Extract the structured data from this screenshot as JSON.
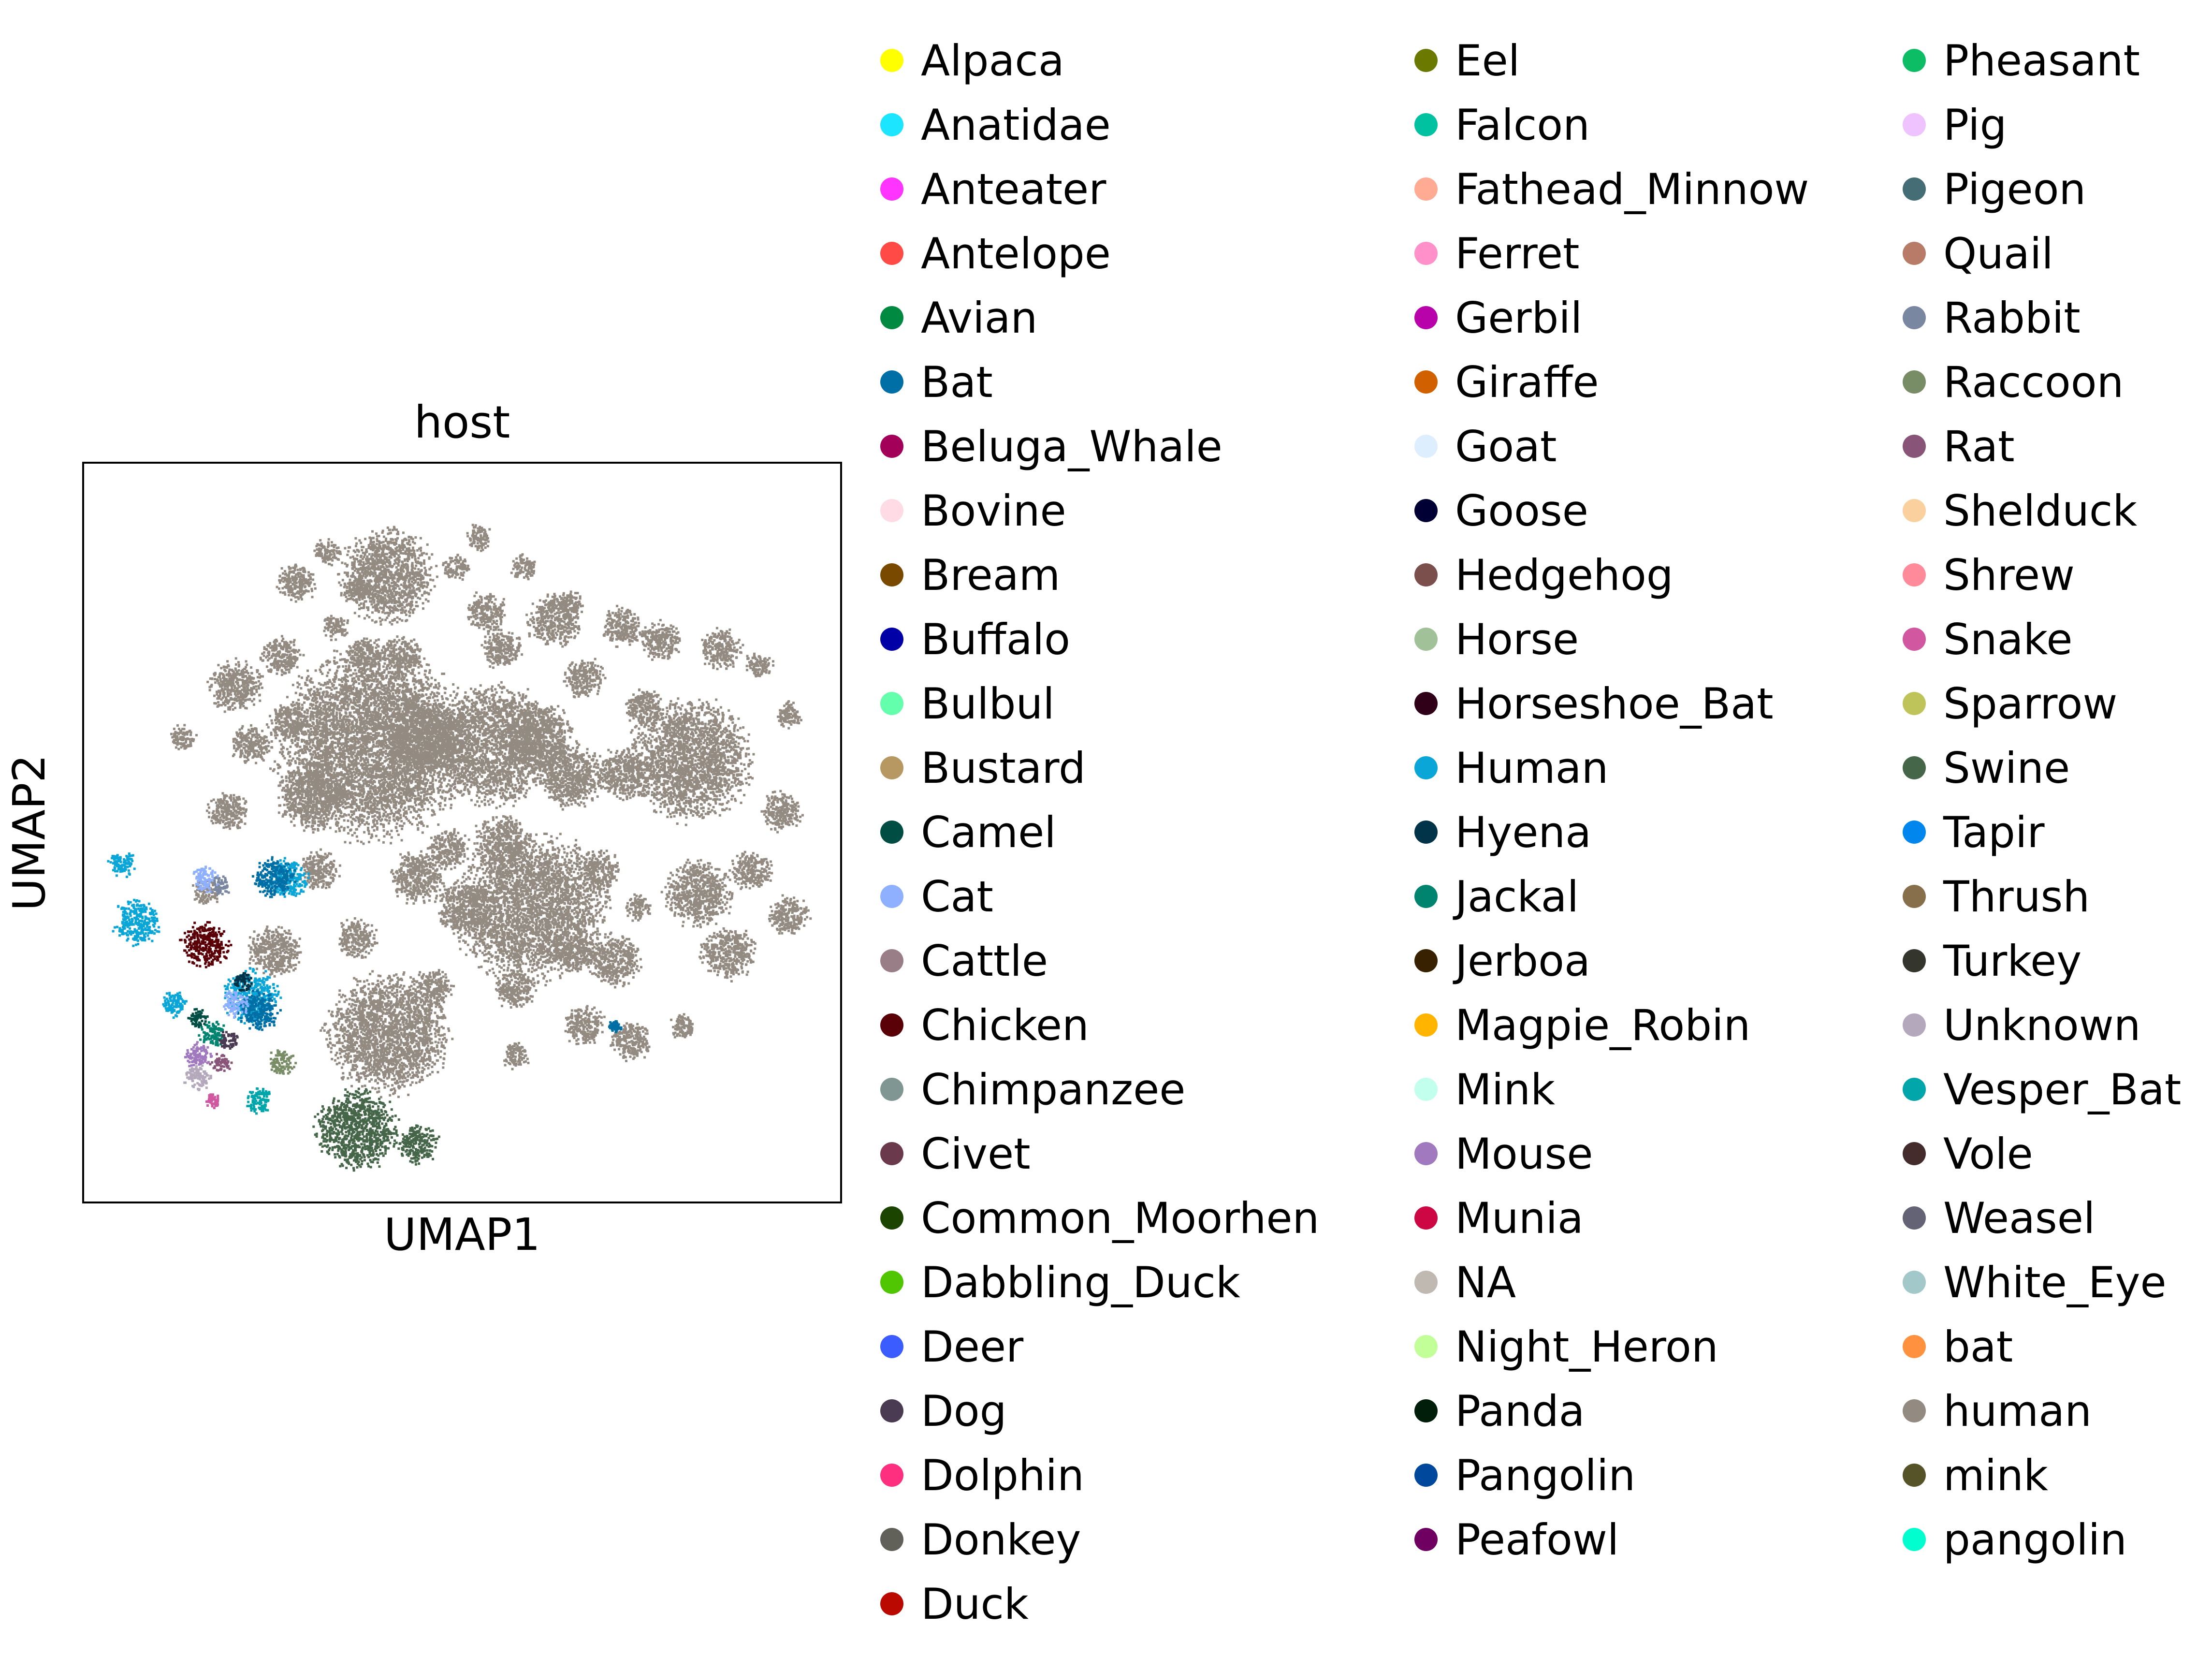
{
  "chart_data": {
    "type": "scatter",
    "title": "host",
    "xlabel": "UMAP1",
    "ylabel": "UMAP2",
    "x_ticks": "none",
    "y_ticks": "none",
    "grid": false,
    "legend_placement": "right, outside plot, 3 columns",
    "legend": [
      {
        "label": "Alpaca",
        "color": "#ffff00"
      },
      {
        "label": "Anatidae",
        "color": "#1ce6ff"
      },
      {
        "label": "Anteater",
        "color": "#ff34ff"
      },
      {
        "label": "Antelope",
        "color": "#ff4a46"
      },
      {
        "label": "Avian",
        "color": "#008941"
      },
      {
        "label": "Bat",
        "color": "#006fa6"
      },
      {
        "label": "Beluga_Whale",
        "color": "#a30059"
      },
      {
        "label": "Bovine",
        "color": "#ffdbe5"
      },
      {
        "label": "Bream",
        "color": "#7a4900"
      },
      {
        "label": "Buffalo",
        "color": "#0000a6"
      },
      {
        "label": "Bulbul",
        "color": "#63ffac"
      },
      {
        "label": "Bustard",
        "color": "#b79762"
      },
      {
        "label": "Camel",
        "color": "#004d43"
      },
      {
        "label": "Cat",
        "color": "#8fb0ff"
      },
      {
        "label": "Cattle",
        "color": "#997d87"
      },
      {
        "label": "Chicken",
        "color": "#5a0007"
      },
      {
        "label": "Chimpanzee",
        "color": "#809693"
      },
      {
        "label": "Civet",
        "color": "#6a3a4c"
      },
      {
        "label": "Common_Moorhen",
        "color": "#1b4400"
      },
      {
        "label": "Dabbling_Duck",
        "color": "#4fc601"
      },
      {
        "label": "Deer",
        "color": "#3b5dff"
      },
      {
        "label": "Dog",
        "color": "#4a3b53"
      },
      {
        "label": "Dolphin",
        "color": "#ff2f80"
      },
      {
        "label": "Donkey",
        "color": "#61615a"
      },
      {
        "label": "Duck",
        "color": "#ba0900"
      },
      {
        "label": "Eel",
        "color": "#6b7900"
      },
      {
        "label": "Falcon",
        "color": "#00c2a0"
      },
      {
        "label": "Fathead_Minnow",
        "color": "#ffaa92"
      },
      {
        "label": "Ferret",
        "color": "#ff90c9"
      },
      {
        "label": "Gerbil",
        "color": "#b903aa"
      },
      {
        "label": "Giraffe",
        "color": "#d16100"
      },
      {
        "label": "Goat",
        "color": "#ddefff"
      },
      {
        "label": "Goose",
        "color": "#000035"
      },
      {
        "label": "Hedgehog",
        "color": "#7b4f4b"
      },
      {
        "label": "Horse",
        "color": "#a1c299"
      },
      {
        "label": "Horseshoe_Bat",
        "color": "#300018"
      },
      {
        "label": "Human",
        "color": "#0aa6d8"
      },
      {
        "label": "Hyena",
        "color": "#013349"
      },
      {
        "label": "Jackal",
        "color": "#00846f"
      },
      {
        "label": "Jerboa",
        "color": "#372101"
      },
      {
        "label": "Magpie_Robin",
        "color": "#ffb500"
      },
      {
        "label": "Mink",
        "color": "#c2ffed"
      },
      {
        "label": "Mouse",
        "color": "#a079bf"
      },
      {
        "label": "Munia",
        "color": "#cc0744"
      },
      {
        "label": "NA",
        "color": "#c0b9b2"
      },
      {
        "label": "Night_Heron",
        "color": "#c2ff99"
      },
      {
        "label": "Panda",
        "color": "#001e09"
      },
      {
        "label": "Pangolin",
        "color": "#00489c"
      },
      {
        "label": "Peafowl",
        "color": "#6f0062"
      },
      {
        "label": "Pheasant",
        "color": "#0cbd66"
      },
      {
        "label": "Pig",
        "color": "#eec3ff"
      },
      {
        "label": "Pigeon",
        "color": "#456d75"
      },
      {
        "label": "Quail",
        "color": "#b77b68"
      },
      {
        "label": "Rabbit",
        "color": "#7a87a1"
      },
      {
        "label": "Raccoon",
        "color": "#788d66"
      },
      {
        "label": "Rat",
        "color": "#885578"
      },
      {
        "label": "Shelduck",
        "color": "#fad09f"
      },
      {
        "label": "Shrew",
        "color": "#ff8a9a"
      },
      {
        "label": "Snake",
        "color": "#d157a0"
      },
      {
        "label": "Sparrow",
        "color": "#bec459"
      },
      {
        "label": "Swine",
        "color": "#456648"
      },
      {
        "label": "Tapir",
        "color": "#0086ed"
      },
      {
        "label": "Thrush",
        "color": "#886f4c"
      },
      {
        "label": "Turkey",
        "color": "#34362d"
      },
      {
        "label": "Unknown",
        "color": "#b4a8bd"
      },
      {
        "label": "Vesper_Bat",
        "color": "#00a6aa"
      },
      {
        "label": "Vole",
        "color": "#452c2c"
      },
      {
        "label": "Weasel",
        "color": "#636375"
      },
      {
        "label": "White_Eye",
        "color": "#a3c8c9"
      },
      {
        "label": "bat",
        "color": "#ff913f"
      },
      {
        "label": "human",
        "color": "#938a81"
      },
      {
        "label": "mink",
        "color": "#575329"
      },
      {
        "label": "pangolin",
        "color": "#00fecf"
      }
    ],
    "clusters": [
      {
        "label": "human",
        "cx": 0.4,
        "cy": 0.85,
        "r": 0.07
      },
      {
        "label": "human",
        "cx": 0.38,
        "cy": 0.62,
        "r": 0.14
      },
      {
        "label": "human",
        "cx": 0.54,
        "cy": 0.62,
        "r": 0.09
      },
      {
        "label": "human",
        "cx": 0.59,
        "cy": 0.4,
        "r": 0.11
      },
      {
        "label": "human",
        "cx": 0.8,
        "cy": 0.6,
        "r": 0.09
      },
      {
        "label": "human",
        "cx": 0.4,
        "cy": 0.23,
        "r": 0.09
      },
      {
        "label": "human",
        "cx": 0.64,
        "cy": 0.58,
        "r": 0.05
      },
      {
        "label": "human",
        "cx": 0.28,
        "cy": 0.84,
        "r": 0.03
      },
      {
        "label": "human",
        "cx": 0.71,
        "cy": 0.58,
        "r": 0.04
      },
      {
        "label": "human",
        "cx": 0.55,
        "cy": 0.49,
        "r": 0.04
      },
      {
        "label": "human",
        "cx": 0.62,
        "cy": 0.79,
        "r": 0.04
      },
      {
        "label": "human",
        "cx": 0.7,
        "cy": 0.33,
        "r": 0.04
      },
      {
        "label": "human",
        "cx": 0.25,
        "cy": 0.34,
        "r": 0.04
      },
      {
        "label": "human",
        "cx": 0.72,
        "cy": 0.22,
        "r": 0.03
      },
      {
        "label": "human",
        "cx": 0.81,
        "cy": 0.42,
        "r": 0.05
      },
      {
        "label": "human",
        "cx": 0.64,
        "cy": 0.81,
        "r": 0.02
      },
      {
        "label": "human",
        "cx": 0.2,
        "cy": 0.7,
        "r": 0.04
      },
      {
        "label": "human",
        "cx": 0.76,
        "cy": 0.76,
        "r": 0.03
      },
      {
        "label": "human",
        "cx": 0.92,
        "cy": 0.53,
        "r": 0.03
      },
      {
        "label": "human",
        "cx": 0.65,
        "cy": 0.34,
        "r": 0.03
      },
      {
        "label": "human",
        "cx": 0.48,
        "cy": 0.48,
        "r": 0.03
      },
      {
        "label": "human",
        "cx": 0.88,
        "cy": 0.45,
        "r": 0.03
      },
      {
        "label": "human",
        "cx": 0.31,
        "cy": 0.45,
        "r": 0.03
      },
      {
        "label": "human",
        "cx": 0.36,
        "cy": 0.36,
        "r": 0.03
      },
      {
        "label": "human",
        "cx": 0.55,
        "cy": 0.75,
        "r": 0.03
      },
      {
        "label": "human",
        "cx": 0.33,
        "cy": 0.78,
        "r": 0.02
      },
      {
        "label": "human",
        "cx": 0.52,
        "cy": 0.9,
        "r": 0.02
      },
      {
        "label": "human",
        "cx": 0.71,
        "cy": 0.78,
        "r": 0.03
      },
      {
        "label": "human",
        "cx": 0.6,
        "cy": 0.63,
        "r": 0.05
      },
      {
        "label": "human",
        "cx": 0.45,
        "cy": 0.63,
        "r": 0.06
      },
      {
        "label": "human",
        "cx": 0.5,
        "cy": 0.4,
        "r": 0.04
      },
      {
        "label": "human",
        "cx": 0.44,
        "cy": 0.44,
        "r": 0.04
      },
      {
        "label": "human",
        "cx": 0.3,
        "cy": 0.55,
        "r": 0.05
      },
      {
        "label": "human",
        "cx": 0.19,
        "cy": 0.53,
        "r": 0.03
      },
      {
        "label": "human",
        "cx": 0.85,
        "cy": 0.34,
        "r": 0.04
      },
      {
        "label": "human",
        "cx": 0.93,
        "cy": 0.39,
        "r": 0.03
      },
      {
        "label": "human",
        "cx": 0.46,
        "cy": 0.29,
        "r": 0.03
      },
      {
        "label": "human",
        "cx": 0.57,
        "cy": 0.29,
        "r": 0.03
      },
      {
        "label": "human",
        "cx": 0.66,
        "cy": 0.24,
        "r": 0.03
      },
      {
        "label": "human",
        "cx": 0.53,
        "cy": 0.8,
        "r": 0.03
      },
      {
        "label": "human",
        "cx": 0.49,
        "cy": 0.86,
        "r": 0.02
      },
      {
        "label": "human",
        "cx": 0.79,
        "cy": 0.24,
        "r": 0.02
      },
      {
        "label": "human",
        "cx": 0.57,
        "cy": 0.2,
        "r": 0.02
      },
      {
        "label": "human",
        "cx": 0.32,
        "cy": 0.88,
        "r": 0.02
      },
      {
        "label": "human",
        "cx": 0.22,
        "cy": 0.62,
        "r": 0.03
      },
      {
        "label": "human",
        "cx": 0.27,
        "cy": 0.65,
        "r": 0.03
      },
      {
        "label": "human",
        "cx": 0.16,
        "cy": 0.42,
        "r": 0.02
      },
      {
        "label": "human",
        "cx": 0.37,
        "cy": 0.74,
        "r": 0.03
      },
      {
        "label": "human",
        "cx": 0.42,
        "cy": 0.74,
        "r": 0.03
      },
      {
        "label": "human",
        "cx": 0.66,
        "cy": 0.71,
        "r": 0.03
      },
      {
        "label": "human",
        "cx": 0.74,
        "cy": 0.67,
        "r": 0.03
      },
      {
        "label": "human",
        "cx": 0.68,
        "cy": 0.45,
        "r": 0.03
      },
      {
        "label": "human",
        "cx": 0.73,
        "cy": 0.4,
        "r": 0.02
      },
      {
        "label": "human",
        "cx": 0.89,
        "cy": 0.73,
        "r": 0.02
      },
      {
        "label": "human",
        "cx": 0.84,
        "cy": 0.75,
        "r": 0.03
      },
      {
        "label": "human",
        "cx": 0.93,
        "cy": 0.66,
        "r": 0.02
      },
      {
        "label": "human",
        "cx": 0.26,
        "cy": 0.74,
        "r": 0.03
      },
      {
        "label": "human",
        "cx": 0.13,
        "cy": 0.63,
        "r": 0.02
      },
      {
        "label": "human",
        "cx": 0.58,
        "cy": 0.86,
        "r": 0.02
      },
      {
        "label": "human",
        "cx": 0.36,
        "cy": 0.83,
        "r": 0.02
      },
      {
        "label": "Swine",
        "cx": 0.36,
        "cy": 0.1,
        "r": 0.06
      },
      {
        "label": "Swine",
        "cx": 0.44,
        "cy": 0.08,
        "r": 0.03
      },
      {
        "label": "Chicken",
        "cx": 0.16,
        "cy": 0.35,
        "r": 0.035
      },
      {
        "label": "Human",
        "cx": 0.07,
        "cy": 0.38,
        "r": 0.035
      },
      {
        "label": "Human",
        "cx": 0.22,
        "cy": 0.28,
        "r": 0.04
      },
      {
        "label": "Human",
        "cx": 0.05,
        "cy": 0.46,
        "r": 0.02
      },
      {
        "label": "Human",
        "cx": 0.27,
        "cy": 0.44,
        "r": 0.03
      },
      {
        "label": "Human",
        "cx": 0.12,
        "cy": 0.27,
        "r": 0.02
      },
      {
        "label": "Bat",
        "cx": 0.25,
        "cy": 0.44,
        "r": 0.03
      },
      {
        "label": "Bat",
        "cx": 0.23,
        "cy": 0.26,
        "r": 0.03
      },
      {
        "label": "Bat",
        "cx": 0.7,
        "cy": 0.24,
        "r": 0.01
      },
      {
        "label": "Cat",
        "cx": 0.16,
        "cy": 0.44,
        "r": 0.02
      },
      {
        "label": "Cat",
        "cx": 0.2,
        "cy": 0.27,
        "r": 0.02
      },
      {
        "label": "Raccoon",
        "cx": 0.26,
        "cy": 0.19,
        "r": 0.02
      },
      {
        "label": "Jackal",
        "cx": 0.17,
        "cy": 0.23,
        "r": 0.02
      },
      {
        "label": "Camel",
        "cx": 0.15,
        "cy": 0.25,
        "r": 0.015
      },
      {
        "label": "Vesper_Bat",
        "cx": 0.23,
        "cy": 0.14,
        "r": 0.02
      },
      {
        "label": "Mouse",
        "cx": 0.15,
        "cy": 0.2,
        "r": 0.02
      },
      {
        "label": "Unknown",
        "cx": 0.15,
        "cy": 0.17,
        "r": 0.02
      },
      {
        "label": "Rat",
        "cx": 0.18,
        "cy": 0.19,
        "r": 0.015
      },
      {
        "label": "Snake",
        "cx": 0.17,
        "cy": 0.14,
        "r": 0.012
      },
      {
        "label": "Hyena",
        "cx": 0.21,
        "cy": 0.3,
        "r": 0.015
      },
      {
        "label": "Dog",
        "cx": 0.19,
        "cy": 0.22,
        "r": 0.015
      },
      {
        "label": "Rabbit",
        "cx": 0.18,
        "cy": 0.43,
        "r": 0.015
      }
    ]
  }
}
